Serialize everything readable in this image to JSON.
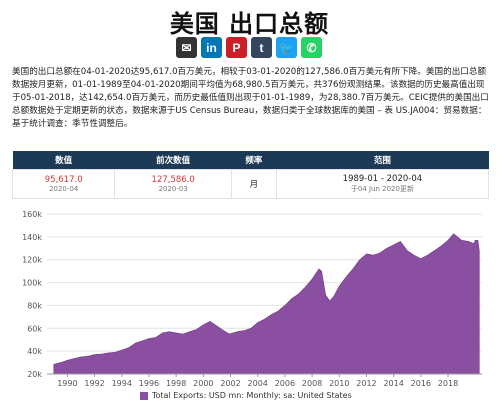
{
  "page": {
    "title": "美国 出口总额",
    "description": "美国的出口总额在04-01-2020达95,617.0百万美元，相较于03-01-2020的127,586.0百万美元有所下降。美国的出口总额数据按月更新，01-01-1989至04-01-2020期间平均值为68,980.5百万美元，共376份观测结果。该数据的历史最高值出现于05-01-2018，达142,654.0百万美元，而历史最低值则出现于01-01-1989，为28,380.7百万美元。CEIC提供的美国出口总额数据处于定期更新的状态，数据来源于US Census Bureau，数据归类于全球数据库的美国 – 表 US.JA004：贸易数据：基于统计调查：季节性调整后。"
  },
  "share": [
    {
      "name": "email-icon",
      "glyph": "✉",
      "color": "#333333"
    },
    {
      "name": "linkedin-icon",
      "glyph": "in",
      "color": "#0077b5"
    },
    {
      "name": "pinterest-icon",
      "glyph": "P",
      "color": "#cb2027"
    },
    {
      "name": "tumblr-icon",
      "glyph": "t",
      "color": "#35465c"
    },
    {
      "name": "twitter-icon",
      "glyph": "🐦",
      "color": "#1da1f2"
    },
    {
      "name": "whatsapp-icon",
      "glyph": "✆",
      "color": "#25d366"
    }
  ],
  "table": {
    "headers": [
      "数值",
      "前次数值",
      "频率",
      "范围"
    ],
    "value": "95,617.0",
    "value_date": "2020-04",
    "prev_value": "127,586.0",
    "prev_date": "2020-03",
    "frequency": "月",
    "range": "1989-01 - 2020-04",
    "range_note": "于04 Jun 2020更新"
  },
  "chart_data": {
    "type": "area",
    "x_ticks": [
      "1990",
      "1992",
      "1994",
      "1996",
      "1998",
      "2000",
      "2002",
      "2004",
      "2006",
      "2008",
      "2010",
      "2012",
      "2014",
      "2016",
      "2018"
    ],
    "y_ticks": [
      "20k",
      "40k",
      "60k",
      "80k",
      "100k",
      "120k",
      "140k",
      "160k"
    ],
    "ylim": [
      20000,
      160000
    ],
    "xlim": [
      1988.5,
      2020.5
    ],
    "legend_label": "Total Exports: USD mn: Monthly: sa: United States",
    "series_color": "#8a4fa0",
    "x": [
      1989.0,
      1989.5,
      1990.0,
      1990.5,
      1991.0,
      1991.5,
      1992.0,
      1992.5,
      1993.0,
      1993.5,
      1994.0,
      1994.5,
      1995.0,
      1995.5,
      1996.0,
      1996.5,
      1997.0,
      1997.5,
      1998.0,
      1998.5,
      1999.0,
      1999.5,
      2000.0,
      2000.5,
      2001.0,
      2001.5,
      2001.9,
      2002.5,
      2003.0,
      2003.5,
      2004.0,
      2004.5,
      2005.0,
      2005.5,
      2006.0,
      2006.5,
      2007.0,
      2007.5,
      2008.0,
      2008.5,
      2008.7,
      2009.0,
      2009.3,
      2009.6,
      2010.0,
      2010.5,
      2011.0,
      2011.5,
      2012.0,
      2012.5,
      2013.0,
      2013.5,
      2014.0,
      2014.5,
      2015.0,
      2015.5,
      2016.0,
      2016.5,
      2017.0,
      2017.5,
      2018.0,
      2018.4,
      2018.8,
      2019.0,
      2019.5,
      2019.9,
      2020.0,
      2020.2,
      2020.3
    ],
    "values": [
      28380.7,
      30000,
      32000,
      33500,
      35000,
      35500,
      37000,
      37500,
      38500,
      39000,
      41000,
      43000,
      47000,
      49000,
      51000,
      52000,
      56000,
      57000,
      56000,
      55000,
      57000,
      59000,
      63000,
      66000,
      62000,
      58000,
      55000,
      57000,
      58000,
      60000,
      65000,
      68000,
      72000,
      75000,
      80000,
      86000,
      90000,
      96000,
      103000,
      112000,
      110000,
      89000,
      84000,
      88000,
      97000,
      105000,
      112000,
      120000,
      125000,
      124000,
      126000,
      130000,
      133000,
      136000,
      128000,
      124000,
      121000,
      124000,
      128000,
      132000,
      137000,
      142654,
      139000,
      137000,
      136000,
      134000,
      137000,
      137000,
      127586
    ]
  }
}
